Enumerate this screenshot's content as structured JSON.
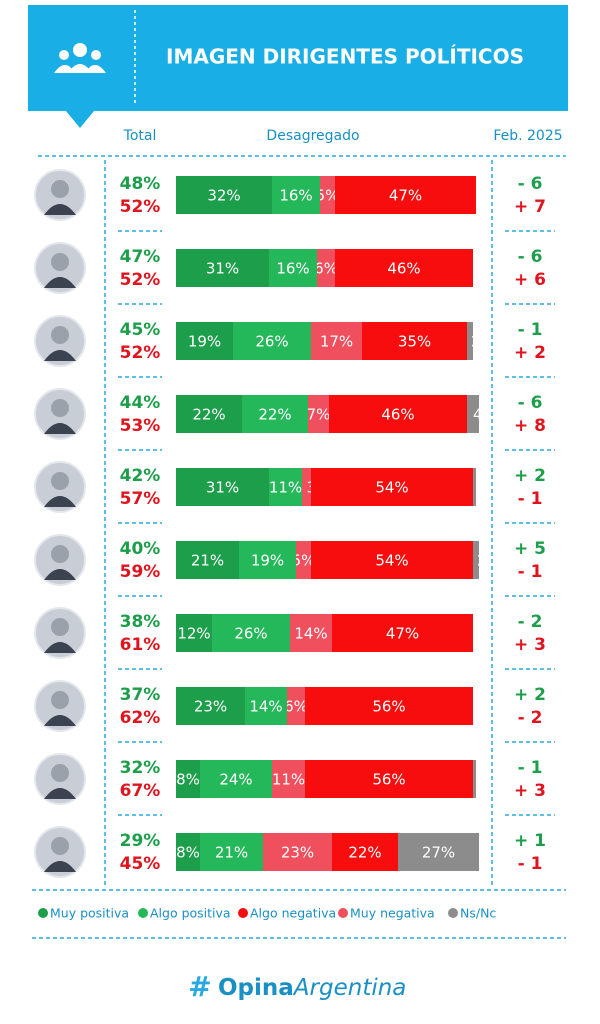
{
  "header": {
    "title": "IMAGEN DIRIGENTES POLÍTICOS"
  },
  "columns": {
    "total": "Total",
    "breakdown": "Desagregado",
    "change": "Feb. 2025"
  },
  "chart_data": {
    "type": "stacked-bar",
    "xlim": [
      0,
      100
    ],
    "series": [
      {
        "name": "Muy positiva",
        "color": "#1c9e4a",
        "values": [
          32,
          31,
          19,
          22,
          31,
          21,
          12,
          23,
          8,
          8
        ],
        "value_labels": [
          "32%",
          "31%",
          "19%",
          "22%",
          "31%",
          "21%",
          "12%",
          "23%",
          "8%",
          "8%"
        ]
      },
      {
        "name": "Algo positiva",
        "color": "#25b85a",
        "values": [
          16,
          16,
          26,
          22,
          11,
          19,
          26,
          14,
          24,
          21
        ],
        "value_labels": [
          "16%",
          "16%",
          "26%",
          "22%",
          "11%",
          "19%",
          "26%",
          "14%",
          "24%",
          "21%"
        ]
      },
      {
        "name": "Algo negativa",
        "color": "#f70d0d",
        "values": [
          47,
          46,
          35,
          46,
          54,
          54,
          47,
          56,
          56,
          22
        ],
        "value_labels": [
          "47%",
          "46%",
          "35%",
          "46%",
          "54%",
          "54%",
          "47%",
          "56%",
          "56%",
          "22%"
        ]
      },
      {
        "name": "Muy negativa",
        "color": "#f0505e",
        "values": [
          5,
          6,
          17,
          7,
          3,
          5,
          14,
          6,
          11,
          23
        ],
        "value_labels": [
          "5%",
          "6%",
          "17%",
          "7%",
          "3%",
          "5%",
          "14%",
          "6%",
          "11%",
          "23%"
        ]
      },
      {
        "name": "Ns/Nc",
        "color": "#8c8c8c",
        "values": [
          0,
          0,
          2,
          4,
          1,
          2,
          0,
          0,
          1,
          27
        ],
        "value_labels": [
          "0%",
          "0%",
          "2%",
          "4%",
          "1%",
          "2%",
          "0%",
          "0%",
          "1%",
          "27%"
        ]
      }
    ],
    "positive_total": {
      "color": "#1c9e4a",
      "values": [
        48,
        47,
        45,
        44,
        42,
        40,
        38,
        37,
        32,
        29
      ],
      "value_labels": [
        "48%",
        "47%",
        "45%",
        "44%",
        "42%",
        "40%",
        "38%",
        "37%",
        "32%",
        "29%"
      ]
    },
    "negative_total": {
      "color": "#e0141e",
      "values": [
        52,
        52,
        52,
        53,
        57,
        59,
        61,
        62,
        67,
        45
      ],
      "value_labels": [
        "52%",
        "52%",
        "52%",
        "53%",
        "57%",
        "59%",
        "61%",
        "62%",
        "67%",
        "45%"
      ]
    },
    "positive_change": {
      "color": "#1c9e4a",
      "values": [
        -6,
        -6,
        -1,
        -6,
        2,
        5,
        -2,
        2,
        -1,
        1
      ],
      "value_labels": [
        "- 6",
        "- 6",
        "- 1",
        "- 6",
        "+ 2",
        "+ 5",
        "- 2",
        "+ 2",
        "- 1",
        "+ 1"
      ]
    },
    "negative_change": {
      "color": "#e0141e",
      "values": [
        7,
        6,
        2,
        8,
        -1,
        -1,
        3,
        -2,
        3,
        -1
      ],
      "value_labels": [
        "+ 7",
        "+ 6",
        "+ 2",
        "+ 8",
        "- 1",
        "- 1",
        "+ 3",
        "- 2",
        "+ 3",
        "- 1"
      ]
    }
  },
  "footer": {
    "brand": [
      "Opina",
      "Argentina"
    ]
  }
}
